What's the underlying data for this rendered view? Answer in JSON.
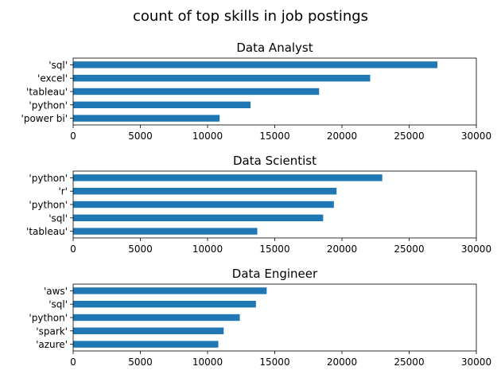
{
  "figure": {
    "title": "count of top skills in job postings"
  },
  "chart_data": [
    {
      "type": "bar",
      "orientation": "horizontal",
      "title": "Data Analyst",
      "xlabel": "",
      "ylabel": "",
      "categories": [
        "'sql'",
        "'excel'",
        "'tableau'",
        "'python'",
        "'power bi'"
      ],
      "values": [
        27100,
        22100,
        18300,
        13200,
        10900
      ],
      "xlim": [
        0,
        30000
      ],
      "xticks": [
        "0",
        "5000",
        "10000",
        "15000",
        "20000",
        "25000",
        "30000"
      ],
      "color": "#1f77b4",
      "grid": false,
      "legend": "none"
    },
    {
      "type": "bar",
      "orientation": "horizontal",
      "title": "Data Scientist",
      "xlabel": "",
      "ylabel": "",
      "categories": [
        "'python'",
        "'r'",
        "'python'",
        "'sql'",
        "'tableau'"
      ],
      "values": [
        23000,
        19600,
        19400,
        18600,
        13700
      ],
      "xlim": [
        0,
        30000
      ],
      "xticks": [
        "0",
        "5000",
        "10000",
        "15000",
        "20000",
        "25000",
        "30000"
      ],
      "color": "#1f77b4",
      "grid": false,
      "legend": "none"
    },
    {
      "type": "bar",
      "orientation": "horizontal",
      "title": "Data Engineer",
      "xlabel": "",
      "ylabel": "",
      "categories": [
        "'aws'",
        "'sql'",
        "'python'",
        "'spark'",
        "'azure'"
      ],
      "values": [
        14400,
        13600,
        12400,
        11200,
        10800
      ],
      "xlim": [
        0,
        30000
      ],
      "xticks": [
        "0",
        "5000",
        "10000",
        "15000",
        "20000",
        "25000",
        "30000"
      ],
      "color": "#1f77b4",
      "grid": false,
      "legend": "none"
    }
  ]
}
